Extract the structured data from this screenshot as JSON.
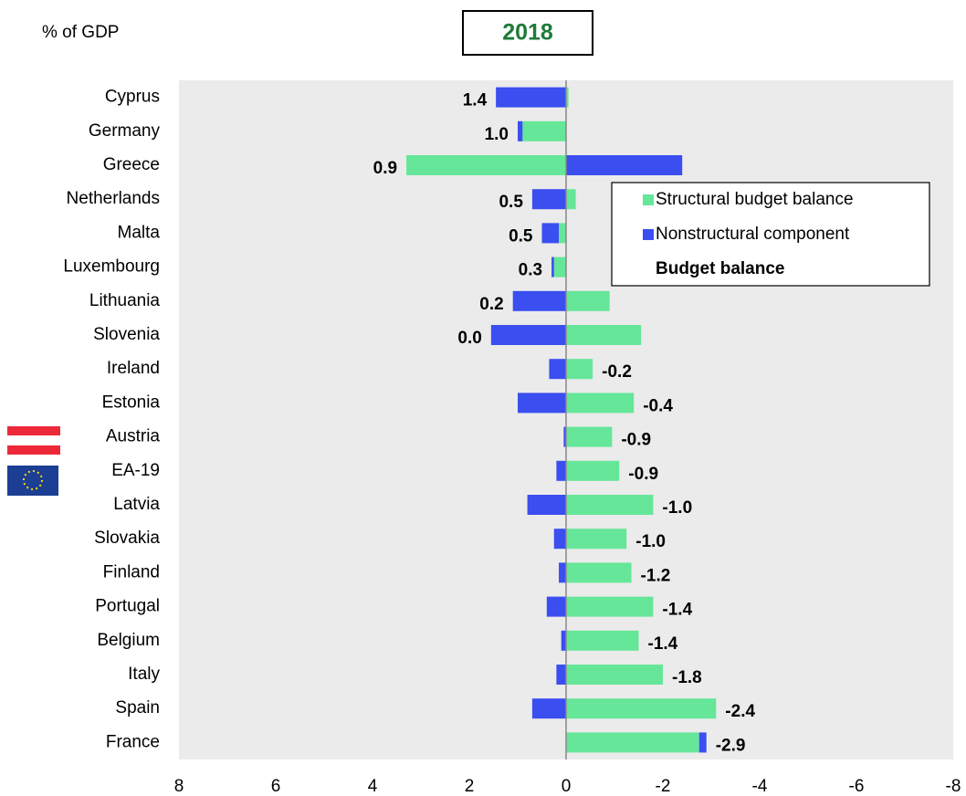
{
  "chart_data": {
    "type": "bar",
    "orientation": "horizontal",
    "stacked": true,
    "title": "2018",
    "subtitle": "% of GDP",
    "categories": [
      "Cyprus",
      "Germany",
      "Greece",
      "Netherlands",
      "Malta",
      "Luxembourg",
      "Lithuania",
      "Slovenia",
      "Ireland",
      "Estonia",
      "Austria",
      "EA-19",
      "Latvia",
      "Slovakia",
      "Finland",
      "Portugal",
      "Belgium",
      "Italy",
      "Spain",
      "France"
    ],
    "series": [
      {
        "name": "Structural budget balance",
        "color": "#66e699",
        "values": [
          -0.05,
          0.9,
          3.3,
          -0.2,
          0.15,
          0.25,
          -0.9,
          -1.55,
          -0.55,
          -1.4,
          -0.95,
          -1.1,
          -1.8,
          -1.25,
          -1.35,
          -1.8,
          -1.5,
          -2.0,
          -3.1,
          -2.75
        ]
      },
      {
        "name": "Nonstructural component",
        "color": "#3b4ef0",
        "values": [
          1.45,
          0.1,
          -2.4,
          0.7,
          0.35,
          0.05,
          1.1,
          1.55,
          0.35,
          1.0,
          0.05,
          0.2,
          0.8,
          0.25,
          0.15,
          0.4,
          0.1,
          0.2,
          0.7,
          -0.15
        ]
      },
      {
        "name": "Budget balance",
        "values": [
          1.4,
          1.0,
          0.9,
          0.5,
          0.5,
          0.3,
          0.2,
          0.0,
          -0.2,
          -0.4,
          -0.9,
          -0.9,
          -1.0,
          -1.0,
          -1.2,
          -1.4,
          -1.4,
          -1.8,
          -2.4,
          -2.9
        ],
        "value_labels": [
          "1.4",
          "1.0",
          "0.9",
          "0.5",
          "0.5",
          "0.3",
          "0.2",
          "0.0",
          "-0.2",
          "-0.4",
          "-0.9",
          "-0.9",
          "-1.0",
          "-1.0",
          "-1.2",
          "-1.4",
          "-1.4",
          "-1.8",
          "-2.4",
          "-2.9"
        ]
      }
    ],
    "xlim": [
      8,
      -8
    ],
    "xticks": [
      8,
      6,
      4,
      2,
      0,
      -2,
      -4,
      -6,
      -8
    ],
    "legend": "upper right",
    "background": "#ebebeb"
  }
}
